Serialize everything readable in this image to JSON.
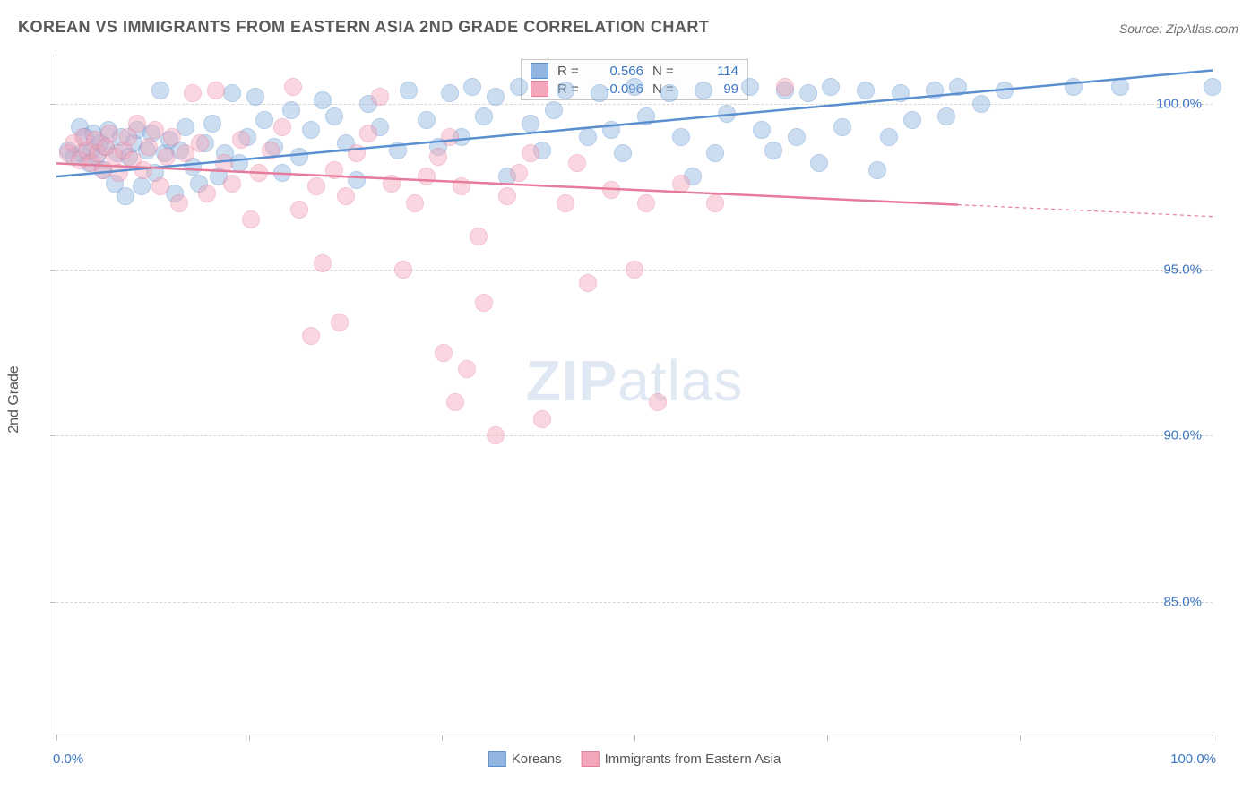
{
  "chart": {
    "type": "scatter",
    "title": "KOREAN VS IMMIGRANTS FROM EASTERN ASIA 2ND GRADE CORRELATION CHART",
    "source": "Source: ZipAtlas.com",
    "ylabel": "2nd Grade",
    "watermark": {
      "bold": "ZIP",
      "rest": "atlas"
    },
    "xlim": [
      0,
      100
    ],
    "ylim": [
      81,
      101.5
    ],
    "yticks": [
      85.0,
      90.0,
      95.0,
      100.0
    ],
    "ytick_labels": [
      "85.0%",
      "90.0%",
      "95.0%",
      "100.0%"
    ],
    "xticks": [
      0,
      16.7,
      33.3,
      50,
      66.7,
      83.3,
      100
    ],
    "xlim_labels": {
      "min": "0.0%",
      "max": "100.0%"
    },
    "title_fontsize": 18,
    "label_fontsize": 15,
    "background_color": "#ffffff",
    "grid_color": "#d6d6d6",
    "axis_color": "#bcbcbc",
    "marker_radius": 9,
    "marker_opacity": 0.45,
    "series": [
      {
        "name": "Koreans",
        "color_fill": "#8fb5e0",
        "color_stroke": "#5a8fd0",
        "r_value": "0.566",
        "n_value": "114",
        "trend": {
          "x1": 0,
          "y1": 97.8,
          "x2": 100,
          "y2": 101.0,
          "width": 2.5,
          "solid_to_x": 100
        },
        "points": [
          [
            1,
            98.6
          ],
          [
            1.5,
            98.4
          ],
          [
            2,
            99.3
          ],
          [
            2.2,
            98.5
          ],
          [
            2.5,
            99.0
          ],
          [
            2.8,
            98.2
          ],
          [
            3,
            98.6
          ],
          [
            3.2,
            99.1
          ],
          [
            3.5,
            98.4
          ],
          [
            3.8,
            98.8
          ],
          [
            4,
            98.0
          ],
          [
            4.3,
            98.7
          ],
          [
            4.5,
            99.2
          ],
          [
            5,
            97.6
          ],
          [
            5.3,
            98.5
          ],
          [
            5.6,
            99.0
          ],
          [
            6,
            97.2
          ],
          [
            6.3,
            98.4
          ],
          [
            6.7,
            98.8
          ],
          [
            7,
            99.2
          ],
          [
            7.4,
            97.5
          ],
          [
            7.8,
            98.6
          ],
          [
            8.2,
            99.1
          ],
          [
            8.5,
            97.9
          ],
          [
            9,
            100.4
          ],
          [
            9.4,
            98.5
          ],
          [
            9.8,
            98.9
          ],
          [
            10.2,
            97.3
          ],
          [
            10.7,
            98.6
          ],
          [
            11.2,
            99.3
          ],
          [
            11.8,
            98.1
          ],
          [
            12.3,
            97.6
          ],
          [
            12.9,
            98.8
          ],
          [
            13.5,
            99.4
          ],
          [
            14,
            97.8
          ],
          [
            14.6,
            98.5
          ],
          [
            15.2,
            100.3
          ],
          [
            15.8,
            98.2
          ],
          [
            16.5,
            99.0
          ],
          [
            17.2,
            100.2
          ],
          [
            18,
            99.5
          ],
          [
            18.8,
            98.7
          ],
          [
            19.5,
            97.9
          ],
          [
            20.3,
            99.8
          ],
          [
            21,
            98.4
          ],
          [
            22,
            99.2
          ],
          [
            23,
            100.1
          ],
          [
            24,
            99.6
          ],
          [
            25,
            98.8
          ],
          [
            26,
            97.7
          ],
          [
            27,
            100.0
          ],
          [
            28,
            99.3
          ],
          [
            29.5,
            98.6
          ],
          [
            30.5,
            100.4
          ],
          [
            32,
            99.5
          ],
          [
            33,
            98.7
          ],
          [
            34,
            100.3
          ],
          [
            35,
            99.0
          ],
          [
            36,
            100.5
          ],
          [
            37,
            99.6
          ],
          [
            38,
            100.2
          ],
          [
            39,
            97.8
          ],
          [
            40,
            100.5
          ],
          [
            41,
            99.4
          ],
          [
            42,
            98.6
          ],
          [
            43,
            99.8
          ],
          [
            44,
            100.4
          ],
          [
            46,
            99.0
          ],
          [
            47,
            100.3
          ],
          [
            48,
            99.2
          ],
          [
            49,
            98.5
          ],
          [
            50,
            100.5
          ],
          [
            51,
            99.6
          ],
          [
            53,
            100.3
          ],
          [
            54,
            99.0
          ],
          [
            55,
            97.8
          ],
          [
            56,
            100.4
          ],
          [
            57,
            98.5
          ],
          [
            58,
            99.7
          ],
          [
            60,
            100.5
          ],
          [
            61,
            99.2
          ],
          [
            62,
            98.6
          ],
          [
            63,
            100.4
          ],
          [
            64,
            99.0
          ],
          [
            65,
            100.3
          ],
          [
            66,
            98.2
          ],
          [
            67,
            100.5
          ],
          [
            68,
            99.3
          ],
          [
            70,
            100.4
          ],
          [
            71,
            98.0
          ],
          [
            72,
            99.0
          ],
          [
            73,
            100.3
          ],
          [
            74,
            99.5
          ],
          [
            76,
            100.4
          ],
          [
            77,
            99.6
          ],
          [
            78,
            100.5
          ],
          [
            80,
            100.0
          ],
          [
            82,
            100.4
          ],
          [
            88,
            100.5
          ],
          [
            92,
            100.5
          ],
          [
            100,
            100.5
          ]
        ]
      },
      {
        "name": "Immigrants from Eastern Asia",
        "color_fill": "#f4a7bb",
        "color_stroke": "#e77b9b",
        "r_value": "-0.096",
        "n_value": "99",
        "trend": {
          "x1": 0,
          "y1": 98.2,
          "x2": 100,
          "y2": 96.6,
          "width": 2.5,
          "solid_to_x": 78
        },
        "points": [
          [
            1,
            98.5
          ],
          [
            1.5,
            98.8
          ],
          [
            2,
            98.3
          ],
          [
            2.3,
            99.0
          ],
          [
            2.6,
            98.6
          ],
          [
            3,
            98.2
          ],
          [
            3.3,
            98.9
          ],
          [
            3.6,
            98.5
          ],
          [
            4,
            98.0
          ],
          [
            4.3,
            98.7
          ],
          [
            4.6,
            99.1
          ],
          [
            5,
            98.4
          ],
          [
            5.4,
            97.9
          ],
          [
            5.8,
            98.6
          ],
          [
            6.2,
            99.0
          ],
          [
            6.6,
            98.3
          ],
          [
            7,
            99.4
          ],
          [
            7.5,
            98.0
          ],
          [
            8,
            98.7
          ],
          [
            8.5,
            99.2
          ],
          [
            9,
            97.5
          ],
          [
            9.5,
            98.4
          ],
          [
            10,
            99.0
          ],
          [
            10.6,
            97.0
          ],
          [
            11.2,
            98.5
          ],
          [
            11.8,
            100.3
          ],
          [
            12.4,
            98.8
          ],
          [
            13,
            97.3
          ],
          [
            13.8,
            100.4
          ],
          [
            14.5,
            98.2
          ],
          [
            15.2,
            97.6
          ],
          [
            16,
            98.9
          ],
          [
            16.8,
            96.5
          ],
          [
            17.5,
            97.9
          ],
          [
            18.5,
            98.6
          ],
          [
            19.5,
            99.3
          ],
          [
            20.5,
            100.5
          ],
          [
            21,
            96.8
          ],
          [
            22,
            93.0
          ],
          [
            22.5,
            97.5
          ],
          [
            23,
            95.2
          ],
          [
            24,
            98.0
          ],
          [
            24.5,
            93.4
          ],
          [
            25,
            97.2
          ],
          [
            26,
            98.5
          ],
          [
            27,
            99.1
          ],
          [
            28,
            100.2
          ],
          [
            29,
            97.6
          ],
          [
            30,
            95.0
          ],
          [
            31,
            97.0
          ],
          [
            32,
            97.8
          ],
          [
            33,
            98.4
          ],
          [
            33.5,
            92.5
          ],
          [
            34,
            99.0
          ],
          [
            34.5,
            91.0
          ],
          [
            35,
            97.5
          ],
          [
            35.5,
            92.0
          ],
          [
            36.5,
            96.0
          ],
          [
            37,
            94.0
          ],
          [
            38,
            90.0
          ],
          [
            39,
            97.2
          ],
          [
            40,
            97.9
          ],
          [
            41,
            98.5
          ],
          [
            42,
            90.5
          ],
          [
            44,
            97.0
          ],
          [
            45,
            98.2
          ],
          [
            46,
            94.6
          ],
          [
            48,
            97.4
          ],
          [
            50,
            95.0
          ],
          [
            51,
            97.0
          ],
          [
            52,
            91.0
          ],
          [
            54,
            97.6
          ],
          [
            57,
            97.0
          ],
          [
            63,
            100.5
          ]
        ]
      }
    ],
    "legend_top": {
      "r_label": "R =",
      "n_label": "N ="
    },
    "legend_bottom": {
      "items": [
        "Koreans",
        "Immigrants from Eastern Asia"
      ]
    }
  }
}
